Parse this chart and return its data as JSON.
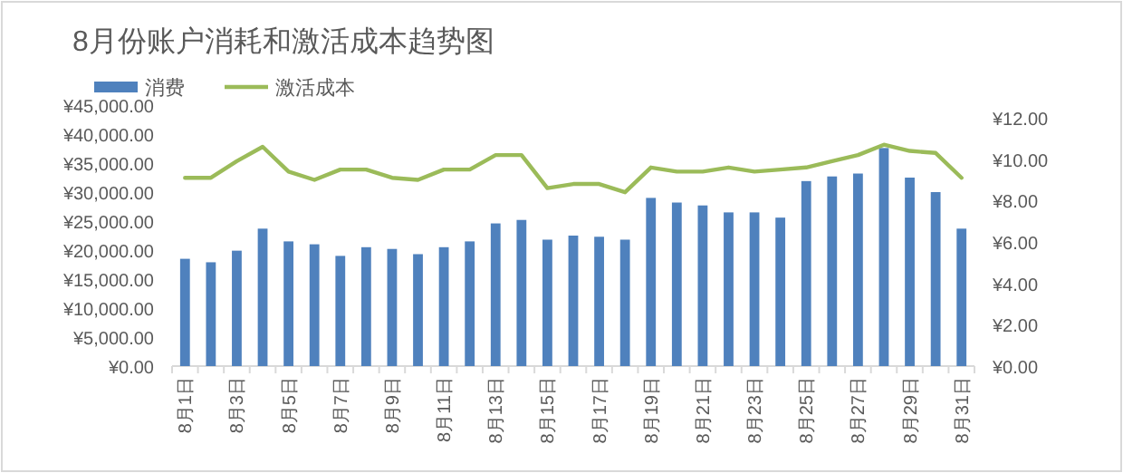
{
  "chart_data": {
    "type": "bar",
    "title": "8月份账户消耗和激活成本趋势图",
    "categories": [
      "8月1日",
      null,
      "8月3日",
      null,
      "8月5日",
      null,
      "8月7日",
      null,
      "8月9日",
      null,
      "8月11日",
      null,
      "8月13日",
      null,
      "8月15日",
      null,
      "8月17日",
      null,
      "8月19日",
      null,
      "8月21日",
      null,
      "8月23日",
      null,
      "8月25日",
      null,
      "8月27日",
      null,
      "8月29日",
      null,
      "8月31日"
    ],
    "series": [
      {
        "name": "消费",
        "color": "#4f81bd",
        "values": [
          18500,
          17900,
          19900,
          23700,
          21500,
          21000,
          19000,
          20500,
          20200,
          19300,
          20500,
          21500,
          24600,
          25200,
          21800,
          22500,
          22300,
          21800,
          29000,
          28200,
          27700,
          26500,
          26500,
          25600,
          31900,
          32700,
          33200,
          37600,
          32500,
          30000,
          23700
        ]
      },
      {
        "name": "激活成本",
        "type": "line",
        "axis": "y2",
        "color": "#9bbb59",
        "values": [
          9.1,
          9.1,
          9.9,
          10.6,
          9.4,
          9.0,
          9.5,
          9.5,
          9.1,
          9.0,
          9.5,
          9.5,
          10.2,
          10.2,
          8.6,
          8.8,
          8.8,
          8.4,
          9.6,
          9.4,
          9.4,
          9.6,
          9.4,
          9.5,
          9.6,
          9.9,
          10.2,
          10.7,
          10.4,
          10.3,
          9.1
        ]
      }
    ],
    "ylim": [
      0,
      45000
    ],
    "yticks": [
      {
        "value": 0,
        "label": "¥0.00"
      },
      {
        "value": 5000,
        "label": "¥5,000.00"
      },
      {
        "value": 10000,
        "label": "¥10,000.00"
      },
      {
        "value": 15000,
        "label": "¥15,000.00"
      },
      {
        "value": 20000,
        "label": "¥20,000.00"
      },
      {
        "value": 25000,
        "label": "¥25,000.00"
      },
      {
        "value": 30000,
        "label": "¥30,000.00"
      },
      {
        "value": 35000,
        "label": "¥35,000.00"
      },
      {
        "value": 40000,
        "label": "¥40,000.00"
      },
      {
        "value": 45000,
        "label": "¥45,000.00"
      }
    ],
    "y2lim": [
      0,
      12
    ],
    "y2ticks": [
      {
        "value": 0,
        "label": "¥0.00"
      },
      {
        "value": 2,
        "label": "¥2.00"
      },
      {
        "value": 4,
        "label": "¥4.00"
      },
      {
        "value": 6,
        "label": "¥6.00"
      },
      {
        "value": 8,
        "label": "¥8.00"
      },
      {
        "value": 10,
        "label": "¥10.00"
      },
      {
        "value": 12,
        "label": "¥12.00"
      }
    ],
    "legend": "top left"
  }
}
